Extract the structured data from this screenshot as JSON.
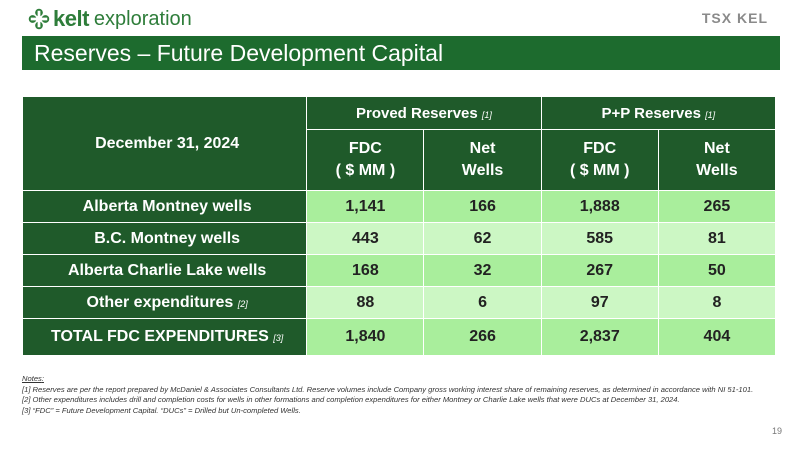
{
  "brand": {
    "name": "kelt",
    "sub": "exploration",
    "exchange": "TSX",
    "ticker": "KEL"
  },
  "title": "Reserves – Future Development Capital",
  "table": {
    "corner": "December 31, 2024",
    "groups": [
      {
        "label": "Proved Reserves",
        "note": "[1]"
      },
      {
        "label": "P+P Reserves",
        "note": "[1]"
      }
    ],
    "subheaders": [
      {
        "line1": "FDC",
        "line2": "( $ MM )"
      },
      {
        "line1": "Net",
        "line2": "Wells"
      },
      {
        "line1": "FDC",
        "line2": "( $ MM )"
      },
      {
        "line1": "Net",
        "line2": "Wells"
      }
    ],
    "rows": [
      {
        "label": "Alberta Montney wells",
        "note": "",
        "values": [
          "1,141",
          "166",
          "1,888",
          "265"
        ]
      },
      {
        "label": "B.C. Montney wells",
        "note": "",
        "values": [
          "443",
          "62",
          "585",
          "81"
        ]
      },
      {
        "label": "Alberta Charlie Lake wells",
        "note": "",
        "values": [
          "168",
          "32",
          "267",
          "50"
        ]
      },
      {
        "label": "Other expenditures",
        "note": "[2]",
        "values": [
          "88",
          "6",
          "97",
          "8"
        ]
      },
      {
        "label": "TOTAL FDC EXPENDITURES",
        "note": "[3]",
        "values": [
          "1,840",
          "266",
          "2,837",
          "404"
        ]
      }
    ]
  },
  "notes": {
    "title": "Notes",
    "items": [
      " [1] Reserves are per the report prepared by McDaniel & Associates Consultants Ltd. Reserve volumes include Company gross working interest share of remaining reserves, as determined in accordance with NI 51-101.",
      "[2] Other expenditures includes drill and completion costs for wells in other formations and completion expenditures for either Montney or Charlie Lake wells that were DUCs at December 31, 2024.",
      "[3] “FDC” = Future Development Capital. “DUCs” = Drilled but Un-completed Wells."
    ]
  },
  "page_number": "19",
  "colors": {
    "header_green": "#1f5a2a",
    "title_green": "#1d6b2e",
    "cell_light": "#ccf7c4",
    "cell_mid": "#a9ee9c"
  }
}
